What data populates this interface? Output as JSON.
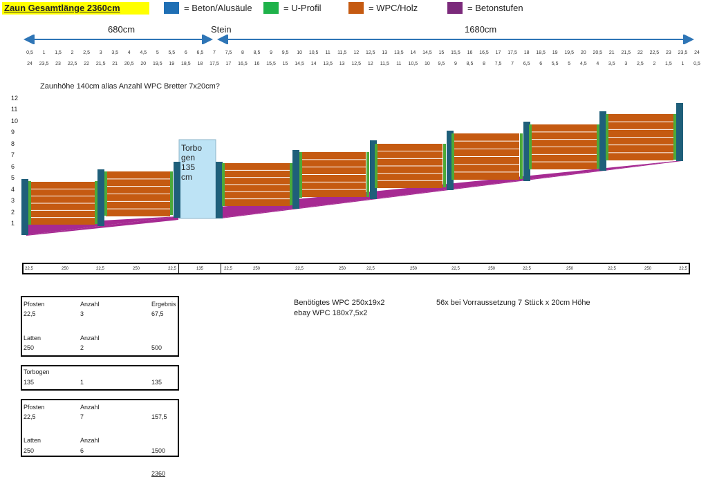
{
  "header": {
    "title": "Zaun Gesamtlänge 2360cm",
    "legend": [
      {
        "label": "=  Beton/Alusäule",
        "color": "#1f6fb4",
        "name": "beton"
      },
      {
        "label": "=  U-Profil",
        "color": "#1fb24a",
        "name": "u-profil"
      },
      {
        "label": "=  WPC/Holz",
        "color": "#c55a11",
        "name": "wpc"
      },
      {
        "label": "=  Betonstufen",
        "color": "#7b2a7b",
        "name": "betonstufen"
      }
    ]
  },
  "dimensions": {
    "left_length": "680cm",
    "middle_label": "Stein",
    "right_length": "1680cm"
  },
  "scale": {
    "top_ticks": [
      "0,5",
      "1",
      "1,5",
      "2",
      "2,5",
      "3",
      "3,5",
      "4",
      "4,5",
      "5",
      "5,5",
      "6",
      "6,5",
      "7",
      "7,5",
      "8",
      "8,5",
      "9",
      "9,5",
      "10",
      "10,5",
      "11",
      "11,5",
      "12",
      "12,5",
      "13",
      "13,5",
      "14",
      "14,5",
      "15",
      "15,5",
      "16",
      "16,5",
      "17",
      "17,5",
      "18",
      "18,5",
      "19",
      "19,5",
      "20",
      "20,5",
      "21",
      "21,5",
      "22",
      "22,5",
      "23",
      "23,5",
      "24"
    ],
    "bottom_ticks": [
      "24",
      "23,5",
      "23",
      "22,5",
      "22",
      "21,5",
      "21",
      "20,5",
      "20",
      "19,5",
      "19",
      "18,5",
      "18",
      "17,5",
      "17",
      "16,5",
      "16",
      "15,5",
      "15",
      "14,5",
      "14",
      "13,5",
      "13",
      "12,5",
      "12",
      "11,5",
      "11",
      "10,5",
      "10",
      "9,5",
      "9",
      "8,5",
      "8",
      "7,5",
      "7",
      "6,5",
      "6",
      "5,5",
      "5",
      "4,5",
      "4",
      "3,5",
      "3",
      "2,5",
      "2",
      "1,5",
      "1",
      "0,5"
    ]
  },
  "diagram": {
    "subtitle": "Zaunhöhe 140cm alias Anzahl WPC Bretter 7x20cm?",
    "y_axis": [
      "1",
      "2",
      "3",
      "4",
      "5",
      "6",
      "7",
      "8",
      "9",
      "10",
      "11",
      "12"
    ],
    "gate_label": [
      "Torbo",
      "gen",
      "135",
      "cm"
    ],
    "colors": {
      "post": "#1f5f7a",
      "uprofile": "#4daa38",
      "wpc": "#c55a11",
      "step": "#a62a92",
      "gate": "#bde3f5"
    }
  },
  "segments": {
    "labels": [
      "22,5",
      "250",
      "22,5",
      "250",
      "22,5",
      "135",
      "22,5",
      "250",
      "22,5",
      "250",
      "22,5",
      "250",
      "22,5",
      "250",
      "22,5",
      "250",
      "22,5",
      "250",
      "22,5"
    ]
  },
  "table1": {
    "h1": "Pfosten",
    "h2": "Anzahl",
    "h3": "Ergebnis",
    "r1": [
      "22,5",
      "3",
      "67,5"
    ],
    "h4": "Latten",
    "h5": "Anzahl",
    "r2": [
      "250",
      "2",
      "500"
    ]
  },
  "table2": {
    "h1": "Torbogen",
    "r1": [
      "135",
      "1",
      "135"
    ]
  },
  "table3": {
    "h1": "Pfosten",
    "h2": "Anzahl",
    "r1": [
      "22,5",
      "7",
      "157,5"
    ],
    "h4": "Latten",
    "h5": "Anzahl",
    "r2": [
      "250",
      "6",
      "1500"
    ]
  },
  "total": "2360",
  "notes": {
    "wpc_needed": "Benötigtes WPC  250x19x2",
    "ebay_wpc": "ebay WPC  180x7,5x2",
    "count_note": "56x bei Vorraussetzung 7 Stück x 20cm Höhe"
  }
}
